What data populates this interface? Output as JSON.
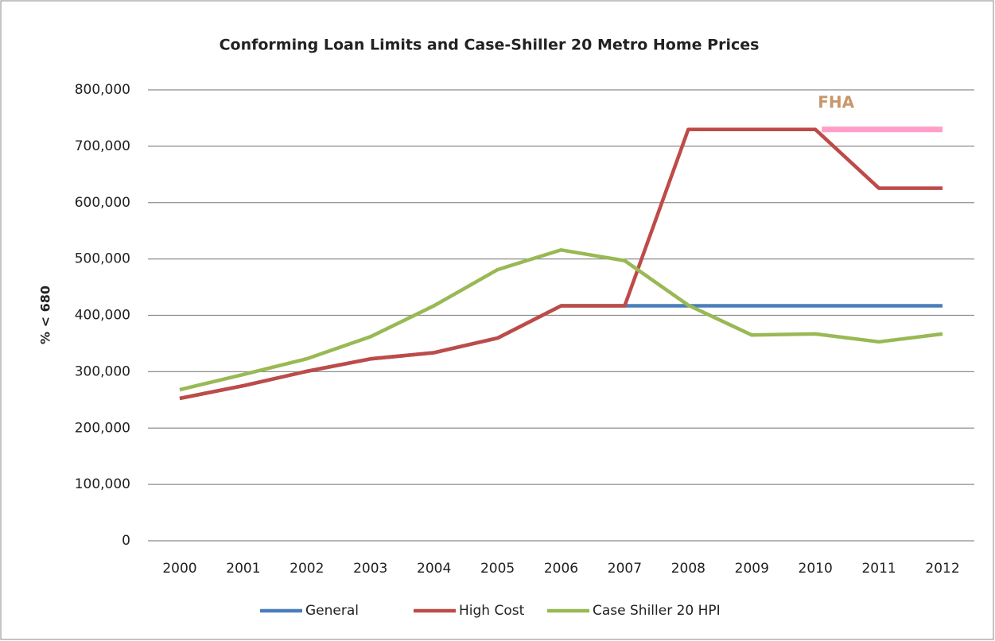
{
  "chart_data": {
    "type": "line",
    "title": "Conforming Loan Limits and Case-Shiller 20 Metro Home Prices",
    "y_label": "% < 680",
    "categories": [
      "2000",
      "2001",
      "2002",
      "2003",
      "2004",
      "2005",
      "2006",
      "2007",
      "2008",
      "2009",
      "2010",
      "2011",
      "2012"
    ],
    "series": [
      {
        "name": "General",
        "color": "#4a7ebb",
        "values": [
          252700,
          275000,
          300700,
          322700,
          333700,
          359650,
          417000,
          417000,
          417000,
          417000,
          417000,
          417000,
          417000
        ]
      },
      {
        "name": "High Cost",
        "color": "#be4b48",
        "values": [
          252700,
          275000,
          300700,
          322700,
          333700,
          359650,
          417000,
          417000,
          729750,
          729750,
          729750,
          625500,
          625500
        ]
      },
      {
        "name": "Case Shiller 20 HPI",
        "color": "#98b954",
        "values": [
          268000,
          295000,
          323000,
          362000,
          417000,
          481000,
          516000,
          497000,
          418000,
          365000,
          367000,
          353000,
          367000
        ]
      }
    ],
    "annotations": [
      {
        "text": "FHA",
        "start": "2010",
        "end": "2012",
        "value": 729750,
        "color": "#ff9ec8",
        "text_color": "#c8966c"
      }
    ],
    "ylim": [
      0,
      800000
    ],
    "yticks": [
      0,
      {
        "value": 100000,
        "label": "100,000"
      },
      {
        "value": 200000,
        "label": "200,000"
      },
      {
        "value": 300000,
        "label": "300,000"
      },
      {
        "value": 400000,
        "label": "400,000"
      },
      {
        "value": 500000,
        "label": "500,000"
      },
      {
        "value": 600000,
        "label": "600,000"
      },
      {
        "value": 700000,
        "label": "700,000"
      },
      {
        "value": 800000,
        "label": "800,000"
      }
    ],
    "grid": true,
    "legend": "bottom"
  }
}
